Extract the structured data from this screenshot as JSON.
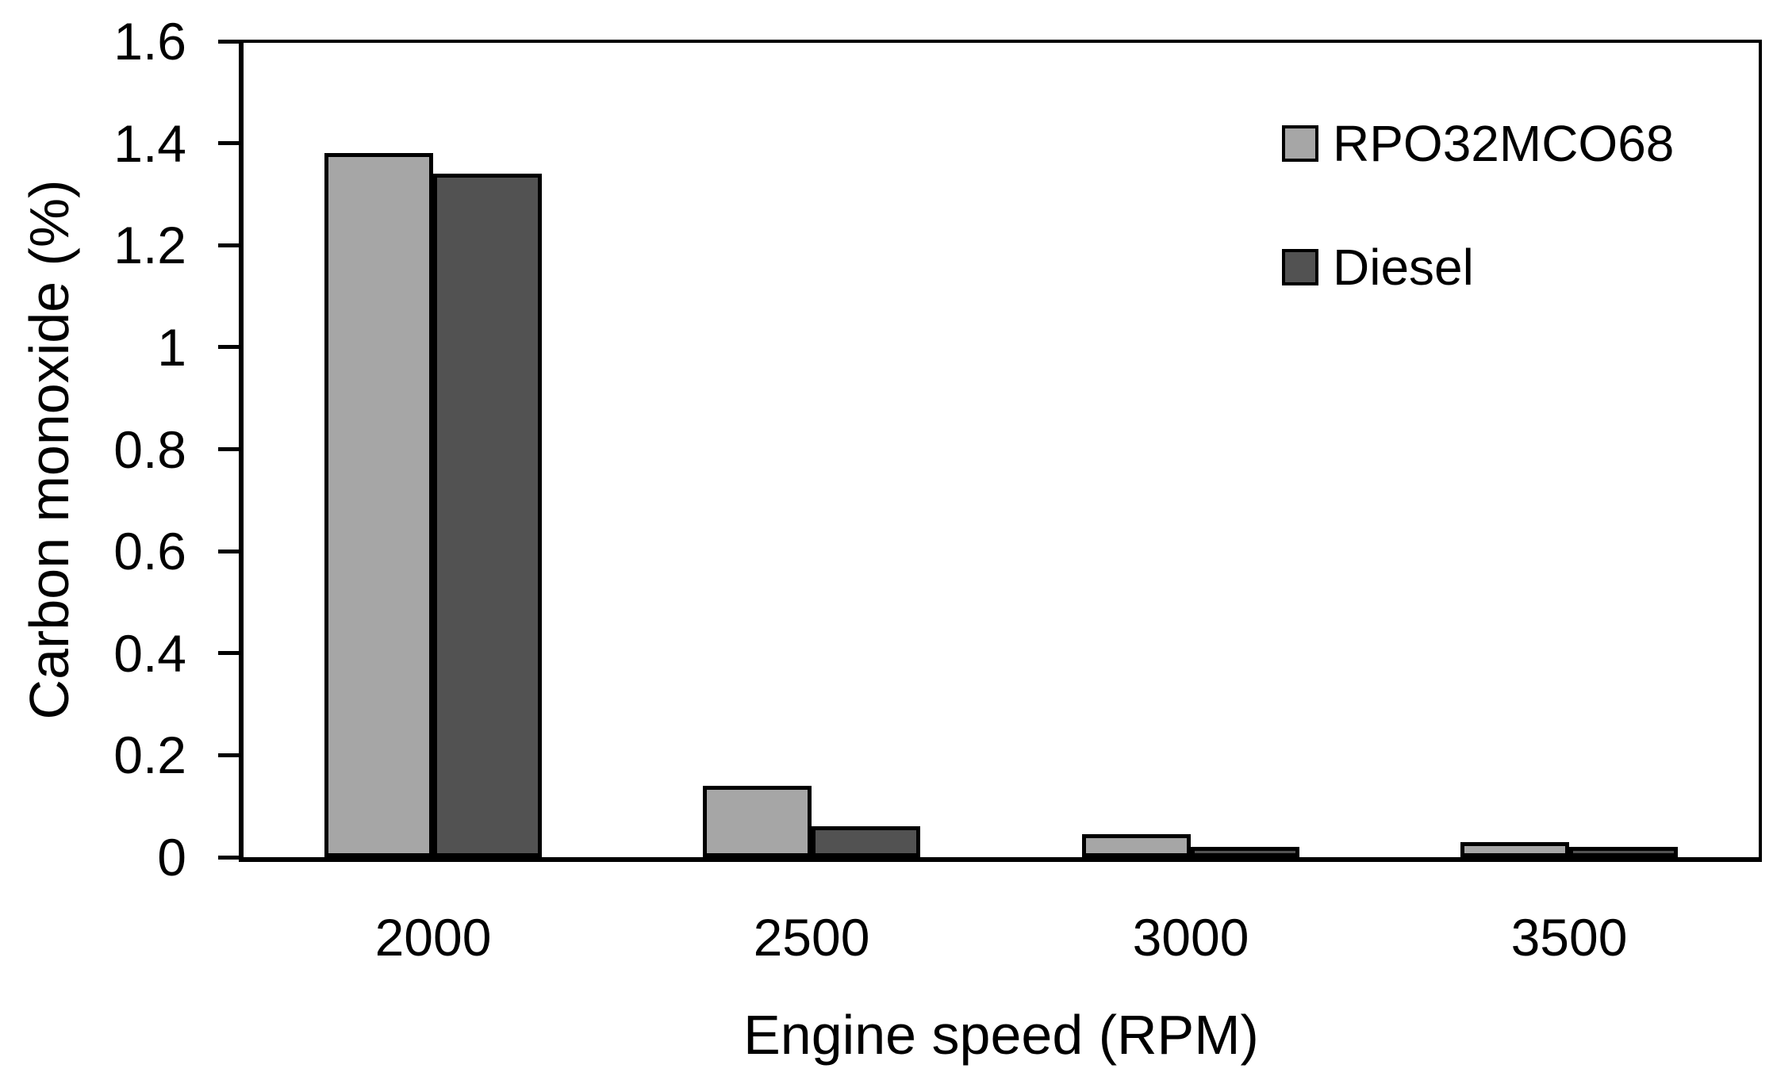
{
  "chart_data": {
    "type": "bar",
    "xlabel": "Engine speed (RPM)",
    "ylabel": "Carbon monoxide (%)",
    "categories": [
      "2000",
      "2500",
      "3000",
      "3500"
    ],
    "series": [
      {
        "name": "RPO32MCO68",
        "color": "#a6a6a6",
        "values": [
          1.38,
          0.14,
          0.045,
          0.03
        ]
      },
      {
        "name": "Diesel",
        "color": "#525252",
        "values": [
          1.34,
          0.06,
          0.02,
          0.02
        ]
      }
    ],
    "ylim": [
      0,
      1.6
    ],
    "ytick_step": 0.2,
    "yticks": [
      {
        "label": "1.6",
        "value": 1.6
      },
      {
        "label": "1.4",
        "value": 1.4
      },
      {
        "label": "1.2",
        "value": 1.2
      },
      {
        "label": "1",
        "value": 1.0
      },
      {
        "label": "0.8",
        "value": 0.8
      },
      {
        "label": "0.6",
        "value": 0.6
      },
      {
        "label": "0.4",
        "value": 0.4
      },
      {
        "label": "0.2",
        "value": 0.2
      },
      {
        "label": "0",
        "value": 0.0
      }
    ],
    "grid": false,
    "legend_position": "top-right-inside",
    "colors": {
      "axis_line": "#000000",
      "bar_border": "#000000",
      "text": "#000000",
      "background": "#ffffff"
    }
  }
}
